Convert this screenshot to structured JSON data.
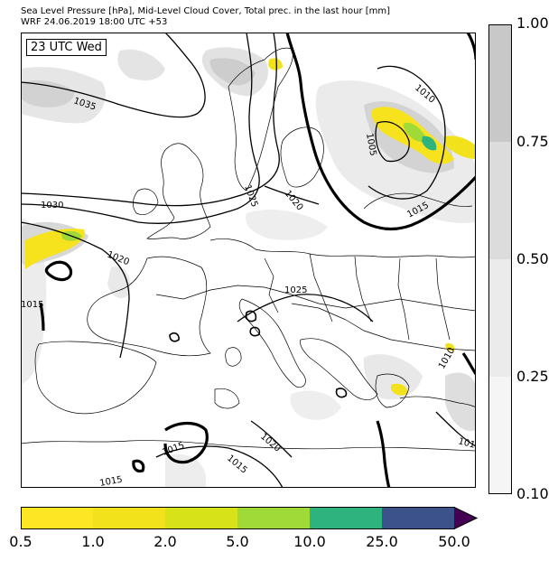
{
  "header": {
    "line1": "Sea Level Pressure [hPa], Mid-Level Cloud Cover, Total prec. in the last hour [mm]",
    "line2": "WRF 24.06.2019 18:00 UTC +53"
  },
  "map": {
    "time_label": "23 UTC Wed",
    "isobar_labels": [
      "1035",
      "1030",
      "1025",
      "1025",
      "1020",
      "1020",
      "1015",
      "1015",
      "1015",
      "1015",
      "1010",
      "1010",
      "1010",
      "1005",
      "1020",
      "1015"
    ]
  },
  "cloud_colorbar": {
    "ticks": [
      "1.00",
      "0.75",
      "0.50",
      "0.25",
      "0.10"
    ],
    "colors": [
      "#c8c8c8",
      "#dcdcdc",
      "#ebebeb",
      "#f5f5f5"
    ]
  },
  "precip_colorbar": {
    "ticks": [
      "0.5",
      "1.0",
      "2.0",
      "5.0",
      "10.0",
      "25.0",
      "50.0"
    ],
    "colors": [
      "#fde725",
      "#f1e21b",
      "#d8e219",
      "#a0da39",
      "#2eb37c",
      "#3b528b",
      "#440154"
    ]
  }
}
